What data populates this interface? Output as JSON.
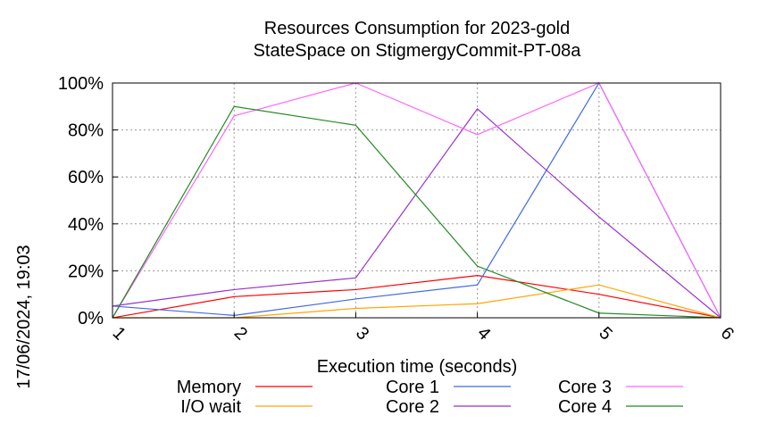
{
  "chart_data": {
    "type": "line",
    "title": "Resources Consumption for 2023-gold",
    "subtitle": "StateSpace on StigmergyCommit-PT-08a",
    "xlabel": "Execution time (seconds)",
    "ylabel": "",
    "side_label": "17/06/2024, 19:03",
    "x": [
      1,
      2,
      3,
      4,
      5,
      6
    ],
    "xlim": [
      1,
      6
    ],
    "ylim": [
      0,
      100
    ],
    "x_ticks": [
      "1",
      "2",
      "3",
      "4",
      "5",
      "6"
    ],
    "y_ticks": [
      "0%",
      "20%",
      "40%",
      "60%",
      "80%",
      "100%"
    ],
    "y_tick_values": [
      0,
      20,
      40,
      60,
      80,
      100
    ],
    "grid": true,
    "legend_position": "bottom",
    "series": [
      {
        "name": "Memory",
        "color": "#ff0000",
        "values": [
          0,
          9,
          12,
          18,
          10,
          0
        ]
      },
      {
        "name": "I/O wait",
        "color": "#ffa500",
        "values": [
          0,
          0,
          4,
          6,
          14,
          0
        ]
      },
      {
        "name": "Core 1",
        "color": "#4169e1",
        "values": [
          5,
          1,
          8,
          14,
          100,
          0
        ]
      },
      {
        "name": "Core 2",
        "color": "#9932cc",
        "values": [
          5,
          12,
          17,
          89,
          43,
          0
        ]
      },
      {
        "name": "Core 3",
        "color": "#ff66ff",
        "values": [
          0,
          86,
          100,
          78,
          100,
          0
        ]
      },
      {
        "name": "Core 4",
        "color": "#228b22",
        "values": [
          0,
          90,
          82,
          22,
          2,
          0
        ]
      }
    ]
  }
}
